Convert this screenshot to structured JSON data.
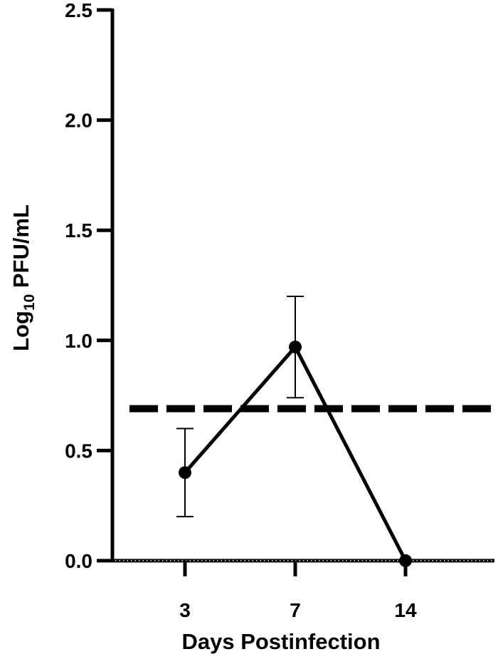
{
  "chart_data": {
    "type": "line",
    "x_categories": [
      "3",
      "7",
      "14"
    ],
    "xlabel": "Days Postinfection",
    "ylabel": {
      "prefix": "Log",
      "subscript": "10",
      "suffix": " PFU/mL"
    },
    "ylim": [
      0.0,
      2.5
    ],
    "y_ticks": [
      "0.0",
      "0.5",
      "1.0",
      "1.5",
      "2.0",
      "2.5"
    ],
    "y_tick_values": [
      0.0,
      0.5,
      1.0,
      1.5,
      2.0,
      2.5
    ],
    "series": [
      {
        "points": [
          {
            "x": "3",
            "y": 0.4,
            "error_upper": 0.6,
            "error_lower": 0.2
          },
          {
            "x": "7",
            "y": 0.97,
            "error_upper": 1.2,
            "error_lower": 0.74
          },
          {
            "x": "14",
            "y": 0.0
          }
        ]
      }
    ],
    "reference_line": {
      "y": 0.69,
      "style": "dashed"
    },
    "grid": false,
    "colors": {
      "line": "#000000",
      "axis": "#000000"
    }
  }
}
